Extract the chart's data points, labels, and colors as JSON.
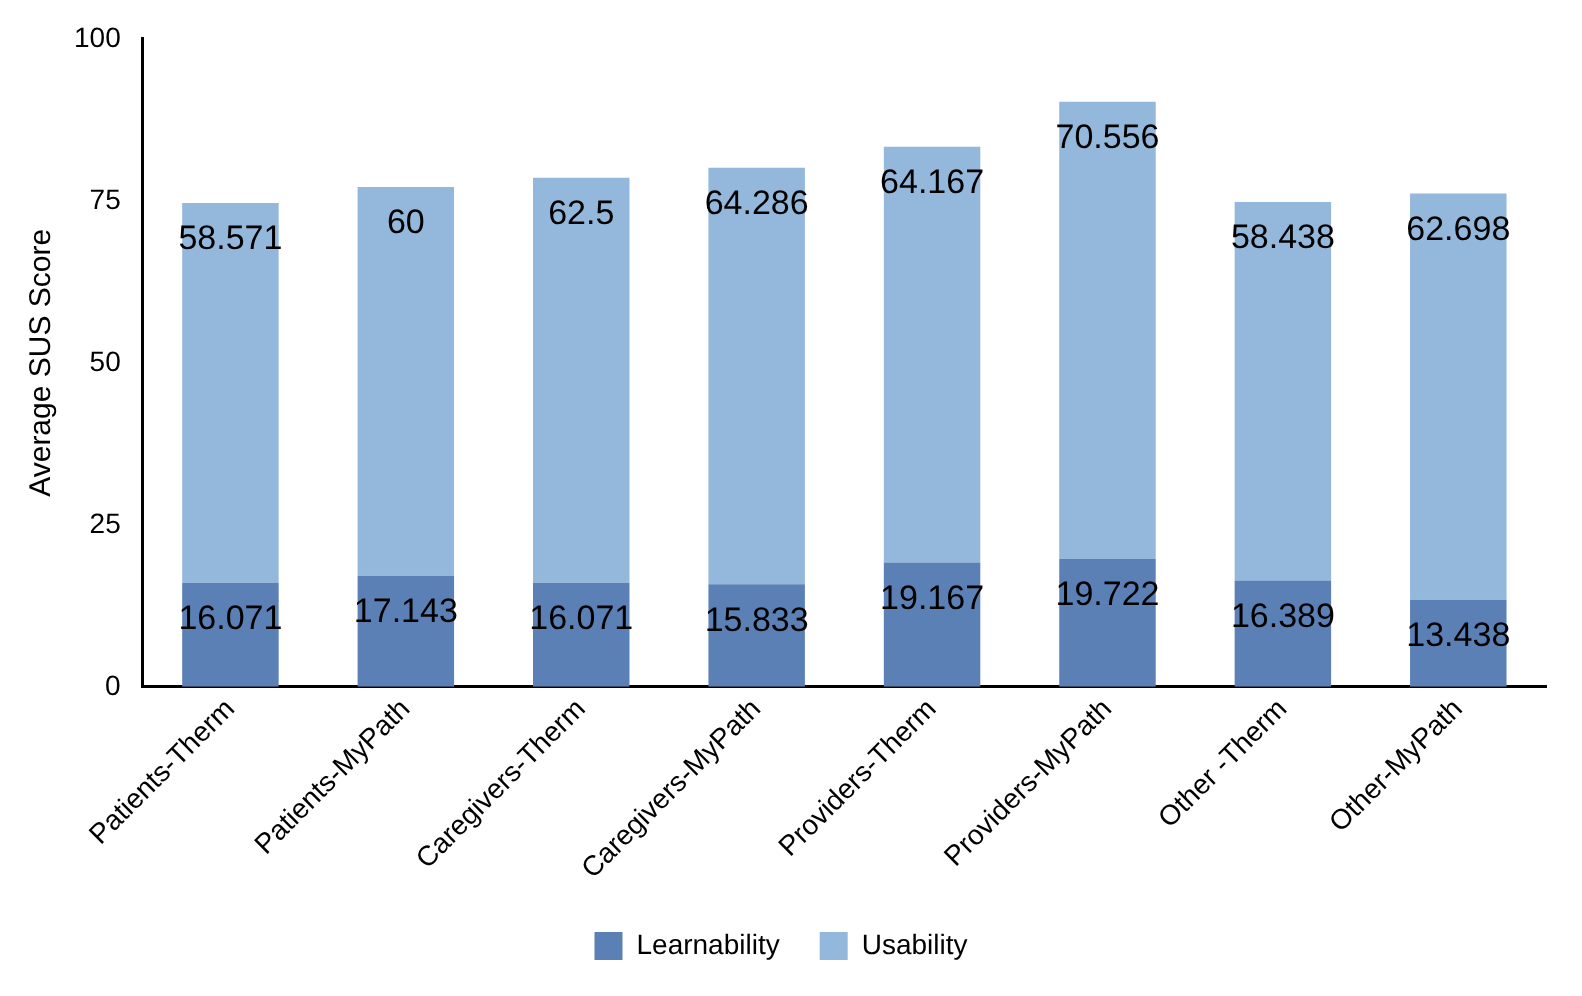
{
  "chart_data": {
    "type": "bar",
    "stacked": true,
    "ylabel": "Average SUS Score",
    "categories": [
      "Patients-Therm",
      "Patients-MyPath",
      "Caregivers-Therm",
      "Caregivers-MyPath",
      "Providers-Therm",
      "Providers-MyPath",
      "Other -Therm",
      "Other-MyPath"
    ],
    "series": [
      {
        "name": "Learnability",
        "color": "#5b80b5",
        "values": [
          16.071,
          17.143,
          16.071,
          15.833,
          19.167,
          19.722,
          16.389,
          13.438
        ]
      },
      {
        "name": "Usability",
        "color": "#94b8dc",
        "values": [
          58.571,
          60,
          62.5,
          64.286,
          64.167,
          70.556,
          58.438,
          62.698
        ]
      }
    ],
    "ylim": [
      0,
      100
    ],
    "yticks": [
      0,
      25,
      50,
      75,
      100
    ],
    "grid": false,
    "legend": "bottom",
    "data_labels": true
  }
}
